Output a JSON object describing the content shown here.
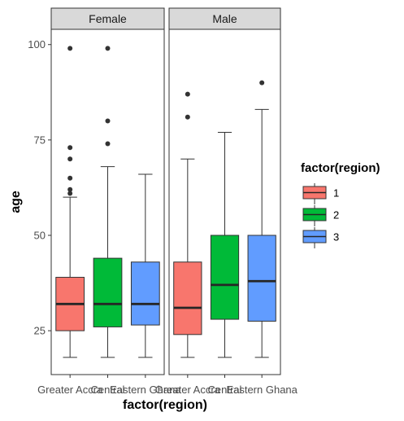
{
  "chart_data": {
    "type": "boxplot",
    "facets": [
      "Female",
      "Male"
    ],
    "xlabel": "factor(region)",
    "ylabel": "age",
    "categories": [
      "Greater Accra",
      "Central",
      "Eastern Ghana"
    ],
    "ylim": [
      13.5,
      104
    ],
    "y_ticks": [
      25,
      50,
      75,
      100
    ],
    "legend": {
      "title": "factor(region)",
      "position": "right",
      "items": [
        {
          "label": "1",
          "color": "#F8766D"
        },
        {
          "label": "2",
          "color": "#00BA38"
        },
        {
          "label": "3",
          "color": "#619CFF"
        }
      ]
    },
    "panels": [
      {
        "facet": "Female",
        "boxes": [
          {
            "category": "Greater Accra",
            "group": "1",
            "whisker_low": 18,
            "q1": 25,
            "median": 32,
            "q3": 39,
            "whisker_high": 60,
            "outliers": [
              99,
              73,
              70,
              65,
              62,
              61
            ]
          },
          {
            "category": "Central",
            "group": "2",
            "whisker_low": 18,
            "q1": 26,
            "median": 32,
            "q3": 44,
            "whisker_high": 68,
            "outliers": [
              99,
              80,
              74
            ]
          },
          {
            "category": "Eastern Ghana",
            "group": "3",
            "whisker_low": 18,
            "q1": 26.5,
            "median": 32,
            "q3": 43,
            "whisker_high": 66,
            "outliers": []
          }
        ]
      },
      {
        "facet": "Male",
        "boxes": [
          {
            "category": "Greater Accra",
            "group": "1",
            "whisker_low": 18,
            "q1": 24,
            "median": 31,
            "q3": 43,
            "whisker_high": 70,
            "outliers": [
              87,
              81
            ]
          },
          {
            "category": "Central",
            "group": "2",
            "whisker_low": 18,
            "q1": 28,
            "median": 37,
            "q3": 50,
            "whisker_high": 77,
            "outliers": []
          },
          {
            "category": "Eastern Ghana",
            "group": "3",
            "whisker_low": 18,
            "q1": 27.5,
            "median": 38,
            "q3": 50,
            "whisker_high": 83,
            "outliers": [
              90
            ]
          }
        ]
      }
    ]
  }
}
